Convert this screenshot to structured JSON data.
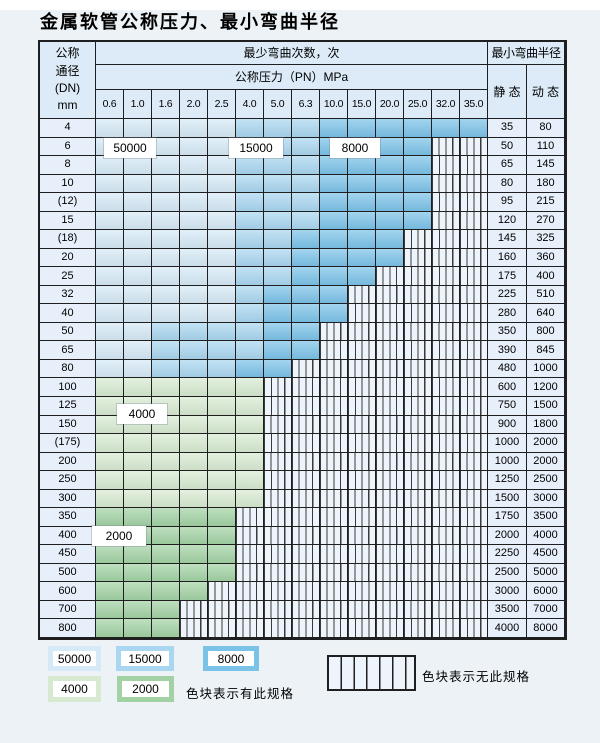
{
  "title": "金属软管公称压力、最小弯曲半径",
  "header": {
    "dn_lines": [
      "公称",
      "通径",
      "(DN)",
      "mm"
    ],
    "cycles_label": "最少弯曲次数，次",
    "pressure_label": "公称压力（PN）MPa",
    "radius_label": "最小弯曲半径",
    "static_label": "静 态",
    "dynamic_label": "动 态"
  },
  "overlays": [
    "50000",
    "15000",
    "8000",
    "4000",
    "2000"
  ],
  "legend": {
    "has_spec_items": [
      {
        "value": "50000"
      },
      {
        "value": "15000"
      },
      {
        "value": "8000"
      },
      {
        "value": "4000"
      },
      {
        "value": "2000"
      }
    ],
    "has_spec_text": "色块表示有此规格",
    "no_spec_text": "色块表示无此规格"
  },
  "colors": {
    "50000": "#d5e9f6",
    "15000": "#a9d6f0",
    "8000": "#7bc2e8",
    "4000": "#d7ead1",
    "2000": "#a2d2a4",
    "no_spec_bg": "#eef4fb",
    "grid_line": "#1f1f1f",
    "header_bg": "#dcebf7",
    "label_col_bg": "#e7f0fa",
    "page_bg": "#edf2f7"
  },
  "chart_data": {
    "type": "heatmap",
    "title": "金属软管公称压力、最小弯曲半径",
    "value_meaning": "最少弯曲次数（次）; null = 无此规格",
    "columns": [
      "0.6",
      "1.0",
      "1.6",
      "2.0",
      "2.5",
      "4.0",
      "5.0",
      "6.3",
      "10.0",
      "15.0",
      "20.0",
      "25.0",
      "32.0",
      "35.0"
    ],
    "radius_columns": [
      "静 态",
      "动 态"
    ],
    "rows": [
      {
        "dn": "4",
        "cycles": [
          50000,
          50000,
          50000,
          50000,
          50000,
          15000,
          15000,
          15000,
          8000,
          8000,
          8000,
          8000,
          8000,
          8000
        ],
        "static": 35,
        "dynamic": 80
      },
      {
        "dn": "6",
        "cycles": [
          50000,
          50000,
          50000,
          50000,
          50000,
          15000,
          15000,
          15000,
          8000,
          8000,
          8000,
          8000,
          null,
          null
        ],
        "static": 50,
        "dynamic": 110
      },
      {
        "dn": "8",
        "cycles": [
          50000,
          50000,
          50000,
          50000,
          50000,
          15000,
          15000,
          15000,
          8000,
          8000,
          8000,
          8000,
          null,
          null
        ],
        "static": 65,
        "dynamic": 145
      },
      {
        "dn": "10",
        "cycles": [
          50000,
          50000,
          50000,
          50000,
          50000,
          15000,
          15000,
          15000,
          8000,
          8000,
          8000,
          8000,
          null,
          null
        ],
        "static": 80,
        "dynamic": 180
      },
      {
        "dn": "(12)",
        "cycles": [
          50000,
          50000,
          50000,
          50000,
          50000,
          15000,
          15000,
          15000,
          8000,
          8000,
          8000,
          8000,
          null,
          null
        ],
        "static": 95,
        "dynamic": 215
      },
      {
        "dn": "15",
        "cycles": [
          50000,
          50000,
          50000,
          50000,
          50000,
          15000,
          15000,
          15000,
          8000,
          8000,
          8000,
          8000,
          null,
          null
        ],
        "static": 120,
        "dynamic": 270
      },
      {
        "dn": "(18)",
        "cycles": [
          50000,
          50000,
          50000,
          50000,
          50000,
          15000,
          15000,
          8000,
          8000,
          8000,
          8000,
          null,
          null,
          null
        ],
        "static": 145,
        "dynamic": 325
      },
      {
        "dn": "20",
        "cycles": [
          50000,
          50000,
          50000,
          50000,
          50000,
          15000,
          15000,
          8000,
          8000,
          8000,
          8000,
          null,
          null,
          null
        ],
        "static": 160,
        "dynamic": 360
      },
      {
        "dn": "25",
        "cycles": [
          50000,
          50000,
          50000,
          50000,
          50000,
          15000,
          15000,
          8000,
          8000,
          8000,
          null,
          null,
          null,
          null
        ],
        "static": 175,
        "dynamic": 400
      },
      {
        "dn": "32",
        "cycles": [
          50000,
          50000,
          50000,
          50000,
          50000,
          15000,
          8000,
          8000,
          8000,
          null,
          null,
          null,
          null,
          null
        ],
        "static": 225,
        "dynamic": 510
      },
      {
        "dn": "40",
        "cycles": [
          50000,
          50000,
          50000,
          50000,
          50000,
          15000,
          8000,
          8000,
          8000,
          null,
          null,
          null,
          null,
          null
        ],
        "static": 280,
        "dynamic": 640
      },
      {
        "dn": "50",
        "cycles": [
          50000,
          50000,
          15000,
          15000,
          15000,
          15000,
          8000,
          8000,
          null,
          null,
          null,
          null,
          null,
          null
        ],
        "static": 350,
        "dynamic": 800
      },
      {
        "dn": "65",
        "cycles": [
          50000,
          50000,
          15000,
          15000,
          15000,
          15000,
          8000,
          8000,
          null,
          null,
          null,
          null,
          null,
          null
        ],
        "static": 390,
        "dynamic": 845
      },
      {
        "dn": "80",
        "cycles": [
          50000,
          50000,
          15000,
          15000,
          15000,
          8000,
          8000,
          null,
          null,
          null,
          null,
          null,
          null,
          null
        ],
        "static": 480,
        "dynamic": 1000
      },
      {
        "dn": "100",
        "cycles": [
          4000,
          4000,
          4000,
          4000,
          4000,
          4000,
          null,
          null,
          null,
          null,
          null,
          null,
          null,
          null
        ],
        "static": 600,
        "dynamic": 1200
      },
      {
        "dn": "125",
        "cycles": [
          4000,
          4000,
          4000,
          4000,
          4000,
          4000,
          null,
          null,
          null,
          null,
          null,
          null,
          null,
          null
        ],
        "static": 750,
        "dynamic": 1500
      },
      {
        "dn": "150",
        "cycles": [
          4000,
          4000,
          4000,
          4000,
          4000,
          4000,
          null,
          null,
          null,
          null,
          null,
          null,
          null,
          null
        ],
        "static": 900,
        "dynamic": 1800
      },
      {
        "dn": "(175)",
        "cycles": [
          4000,
          4000,
          4000,
          4000,
          4000,
          4000,
          null,
          null,
          null,
          null,
          null,
          null,
          null,
          null
        ],
        "static": 1000,
        "dynamic": 2000
      },
      {
        "dn": "200",
        "cycles": [
          4000,
          4000,
          4000,
          4000,
          4000,
          4000,
          null,
          null,
          null,
          null,
          null,
          null,
          null,
          null
        ],
        "static": 1000,
        "dynamic": 2000
      },
      {
        "dn": "250",
        "cycles": [
          4000,
          4000,
          4000,
          4000,
          4000,
          4000,
          null,
          null,
          null,
          null,
          null,
          null,
          null,
          null
        ],
        "static": 1250,
        "dynamic": 2500
      },
      {
        "dn": "300",
        "cycles": [
          4000,
          4000,
          4000,
          4000,
          4000,
          4000,
          null,
          null,
          null,
          null,
          null,
          null,
          null,
          null
        ],
        "static": 1500,
        "dynamic": 3000
      },
      {
        "dn": "350",
        "cycles": [
          2000,
          2000,
          2000,
          2000,
          2000,
          null,
          null,
          null,
          null,
          null,
          null,
          null,
          null,
          null
        ],
        "static": 1750,
        "dynamic": 3500
      },
      {
        "dn": "400",
        "cycles": [
          2000,
          2000,
          2000,
          2000,
          2000,
          null,
          null,
          null,
          null,
          null,
          null,
          null,
          null,
          null
        ],
        "static": 2000,
        "dynamic": 4000
      },
      {
        "dn": "450",
        "cycles": [
          2000,
          2000,
          2000,
          2000,
          2000,
          null,
          null,
          null,
          null,
          null,
          null,
          null,
          null,
          null
        ],
        "static": 2250,
        "dynamic": 4500
      },
      {
        "dn": "500",
        "cycles": [
          2000,
          2000,
          2000,
          2000,
          2000,
          null,
          null,
          null,
          null,
          null,
          null,
          null,
          null,
          null
        ],
        "static": 2500,
        "dynamic": 5000
      },
      {
        "dn": "600",
        "cycles": [
          2000,
          2000,
          2000,
          2000,
          null,
          null,
          null,
          null,
          null,
          null,
          null,
          null,
          null,
          null
        ],
        "static": 3000,
        "dynamic": 6000
      },
      {
        "dn": "700",
        "cycles": [
          2000,
          2000,
          2000,
          null,
          null,
          null,
          null,
          null,
          null,
          null,
          null,
          null,
          null,
          null
        ],
        "static": 3500,
        "dynamic": 7000
      },
      {
        "dn": "800",
        "cycles": [
          2000,
          2000,
          2000,
          null,
          null,
          null,
          null,
          null,
          null,
          null,
          null,
          null,
          null,
          null
        ],
        "static": 4000,
        "dynamic": 8000
      }
    ]
  }
}
